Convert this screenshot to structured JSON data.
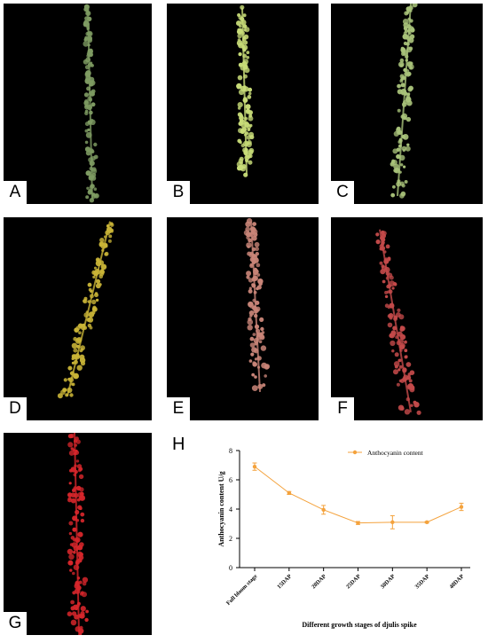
{
  "panels": [
    {
      "id": "a",
      "label": "A",
      "color": "#7e9b62"
    },
    {
      "id": "b",
      "label": "B",
      "color": "#c8dc78"
    },
    {
      "id": "c",
      "label": "C",
      "color": "#a9c37a"
    },
    {
      "id": "d",
      "label": "D",
      "color": "#c9b437"
    },
    {
      "id": "e",
      "label": "E",
      "color": "#c98578"
    },
    {
      "id": "f",
      "label": "F",
      "color": "#c44a4a"
    },
    {
      "id": "g",
      "label": "G",
      "color": "#d6262b"
    }
  ],
  "chart_panel_label": "H",
  "chart_data": {
    "type": "line",
    "categories": [
      "Full bloom stage",
      "15DAP",
      "20DAP",
      "25DAP",
      "30DAP",
      "35DAP",
      "40DAP"
    ],
    "series": [
      {
        "name": "Anthocyanin content",
        "values": [
          6.9,
          5.1,
          3.95,
          3.05,
          3.1,
          3.1,
          4.15
        ],
        "errors": [
          0.25,
          0.1,
          0.3,
          0.1,
          0.45,
          0.05,
          0.25
        ],
        "color": "#f4a23c"
      }
    ],
    "xlabel": "Different growth stages of djulis spike",
    "ylabel": "Anthocyanin content U/g",
    "ylim": [
      0,
      8
    ],
    "yticks": [
      "0",
      "2",
      "4",
      "6",
      "8"
    ],
    "grid": false,
    "legend_position": "top-right"
  }
}
